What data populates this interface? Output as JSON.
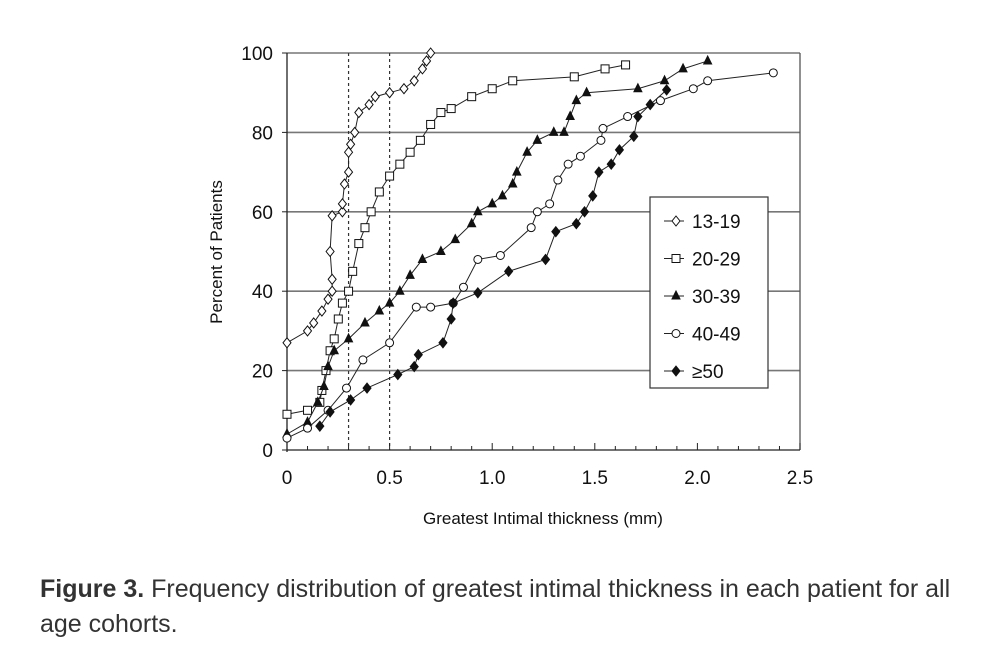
{
  "chart_data": {
    "type": "line",
    "title": "",
    "xlabel": "Greatest Intimal thickness (mm)",
    "ylabel": "Percent of Patients",
    "xlim": [
      0,
      2.5
    ],
    "ylim": [
      0,
      100
    ],
    "xticks": [
      "0",
      "0.5",
      "1.0",
      "1.5",
      "2.0",
      "2.5"
    ],
    "xtick_values": [
      0,
      0.5,
      1.0,
      1.5,
      2.0,
      2.5
    ],
    "yticks": [
      "0",
      "20",
      "40",
      "60",
      "80",
      "100"
    ],
    "ytick_values": [
      0,
      20,
      40,
      60,
      80,
      100
    ],
    "grid": "horizontal",
    "reference_lines_x": [
      0.3,
      0.5
    ],
    "legend_position": "center-right",
    "series": [
      {
        "name": "13-19",
        "marker": "open-diamond",
        "x": [
          0,
          0.1,
          0.13,
          0.17,
          0.2,
          0.22,
          0.22,
          0.21,
          0.22,
          0.27,
          0.27,
          0.28,
          0.3,
          0.3,
          0.31,
          0.33,
          0.35,
          0.4,
          0.43,
          0.5,
          0.57,
          0.62,
          0.66,
          0.68,
          0.7
        ],
        "y": [
          27,
          30,
          32,
          35,
          38,
          40,
          43,
          50,
          59,
          60,
          62,
          67,
          70,
          75,
          77,
          80,
          85,
          87,
          89,
          90,
          91,
          93,
          96,
          98,
          100
        ]
      },
      {
        "name": "20-29",
        "marker": "open-square",
        "x": [
          0,
          0.1,
          0.16,
          0.17,
          0.19,
          0.21,
          0.23,
          0.25,
          0.27,
          0.3,
          0.32,
          0.35,
          0.38,
          0.41,
          0.45,
          0.5,
          0.55,
          0.6,
          0.65,
          0.7,
          0.75,
          0.8,
          0.9,
          1.0,
          1.1,
          1.4,
          1.55,
          1.65
        ],
        "y": [
          9,
          10,
          12,
          15,
          20,
          25,
          28,
          33,
          37,
          40,
          45,
          52,
          56,
          60,
          65,
          69,
          72,
          75,
          78,
          82,
          85,
          86,
          89,
          91,
          93,
          94,
          96,
          97
        ]
      },
      {
        "name": "30-39",
        "marker": "filled-triangle",
        "x": [
          0,
          0.1,
          0.15,
          0.18,
          0.2,
          0.23,
          0.3,
          0.38,
          0.45,
          0.5,
          0.55,
          0.6,
          0.66,
          0.75,
          0.82,
          0.9,
          0.93,
          1.0,
          1.05,
          1.1,
          1.12,
          1.17,
          1.22,
          1.3,
          1.35,
          1.38,
          1.41,
          1.46,
          1.71,
          1.84,
          1.93,
          2.05
        ],
        "y": [
          4,
          7,
          12,
          16,
          21,
          25,
          28,
          32,
          35,
          37,
          40,
          44,
          48,
          50,
          53,
          57,
          60,
          62,
          64,
          67,
          70,
          75,
          78,
          80,
          80,
          84,
          88,
          90,
          91,
          93,
          96,
          98
        ]
      },
      {
        "name": "40-49",
        "marker": "open-circle",
        "x": [
          0,
          0.1,
          0.2,
          0.29,
          0.37,
          0.5,
          0.63,
          0.7,
          0.81,
          0.86,
          0.93,
          1.04,
          1.19,
          1.22,
          1.28,
          1.32,
          1.37,
          1.43,
          1.53,
          1.54,
          1.66,
          1.82,
          1.98,
          2.05,
          2.37
        ],
        "y": [
          3,
          5.5,
          10,
          15.6,
          22.7,
          27,
          36,
          36,
          37,
          41,
          48,
          49,
          56,
          60,
          62,
          68,
          72,
          74,
          78,
          81,
          84,
          88,
          91,
          93,
          95
        ]
      },
      {
        "name": "≥50",
        "marker": "filled-diamond",
        "x": [
          0.16,
          0.21,
          0.31,
          0.39,
          0.54,
          0.62,
          0.64,
          0.76,
          0.8,
          0.81,
          0.93,
          1.08,
          1.26,
          1.31,
          1.41,
          1.45,
          1.49,
          1.52,
          1.58,
          1.62,
          1.69,
          1.71,
          1.77,
          1.85
        ],
        "y": [
          6,
          9.6,
          12.6,
          15.6,
          19,
          21,
          24,
          27,
          33,
          37,
          39.6,
          45,
          48,
          55,
          57,
          60,
          64,
          70,
          72,
          75.6,
          79,
          84,
          87,
          90.7
        ]
      }
    ]
  },
  "caption": {
    "label": "Figure 3.",
    "text": " Frequency distribution of greatest intimal thickness in each patient for all age cohorts."
  }
}
